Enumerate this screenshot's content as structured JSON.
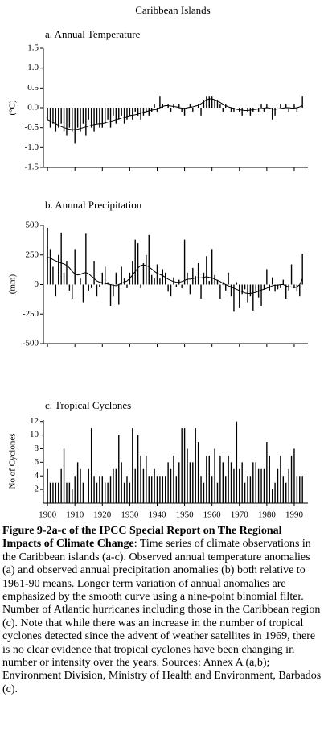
{
  "title": "Caribbean Islands",
  "chart_data": [
    {
      "type": "bar",
      "title": "a. Annual Temperature",
      "ylabel": "(°C)",
      "color": "#000000",
      "x": [
        1900,
        1901,
        1902,
        1903,
        1904,
        1905,
        1906,
        1907,
        1908,
        1909,
        1910,
        1911,
        1912,
        1913,
        1914,
        1915,
        1916,
        1917,
        1918,
        1919,
        1920,
        1921,
        1922,
        1923,
        1924,
        1925,
        1926,
        1927,
        1928,
        1929,
        1930,
        1931,
        1932,
        1933,
        1934,
        1935,
        1936,
        1937,
        1938,
        1939,
        1940,
        1941,
        1942,
        1943,
        1944,
        1945,
        1946,
        1947,
        1948,
        1949,
        1950,
        1951,
        1952,
        1953,
        1954,
        1955,
        1956,
        1957,
        1958,
        1959,
        1960,
        1961,
        1962,
        1963,
        1964,
        1965,
        1966,
        1967,
        1968,
        1969,
        1970,
        1971,
        1972,
        1973,
        1974,
        1975,
        1976,
        1977,
        1978,
        1979,
        1980,
        1981,
        1982,
        1983,
        1984,
        1985,
        1986,
        1987,
        1988,
        1989,
        1990,
        1991,
        1992,
        1993
      ],
      "values": [
        -0.3,
        -0.5,
        -0.4,
        -0.6,
        -0.5,
        -0.4,
        -0.6,
        -0.7,
        -0.5,
        -0.6,
        -0.9,
        -0.5,
        -0.6,
        -0.4,
        -0.7,
        -0.3,
        -0.5,
        -0.6,
        -0.4,
        -0.5,
        -0.5,
        -0.4,
        -0.3,
        -0.5,
        -0.2,
        -0.4,
        -0.3,
        -0.2,
        -0.4,
        -0.3,
        -0.2,
        -0.3,
        -0.1,
        -0.2,
        -0.3,
        -0.2,
        -0.1,
        -0.2,
        -0.1,
        0.1,
        -0.1,
        0.3,
        0.1,
        0.0,
        0.1,
        -0.1,
        0.1,
        0.0,
        0.1,
        -0.1,
        -0.2,
        0.0,
        0.1,
        -0.1,
        0.0,
        0.1,
        -0.2,
        0.2,
        0.3,
        0.3,
        0.3,
        0.2,
        0.2,
        0.1,
        -0.1,
        0.1,
        0.0,
        -0.1,
        -0.1,
        0.0,
        -0.1,
        -0.2,
        0.0,
        -0.1,
        -0.2,
        -0.1,
        0.0,
        -0.1,
        0.1,
        -0.1,
        0.1,
        0.0,
        -0.3,
        -0.2,
        0.0,
        0.1,
        0.0,
        0.1,
        -0.1,
        0.0,
        0.1,
        -0.1,
        0.0,
        0.3
      ],
      "smooth": [
        -0.3,
        -0.33,
        -0.37,
        -0.4,
        -0.44,
        -0.47,
        -0.5,
        -0.52,
        -0.54,
        -0.55,
        -0.55,
        -0.54,
        -0.52,
        -0.5,
        -0.48,
        -0.46,
        -0.44,
        -0.42,
        -0.41,
        -0.4,
        -0.4,
        -0.38,
        -0.36,
        -0.34,
        -0.32,
        -0.3,
        -0.28,
        -0.26,
        -0.24,
        -0.22,
        -0.2,
        -0.19,
        -0.18,
        -0.16,
        -0.14,
        -0.12,
        -0.1,
        -0.08,
        -0.06,
        -0.05,
        -0.04,
        0.0,
        0.03,
        0.05,
        0.05,
        0.04,
        0.03,
        0.02,
        0.0,
        -0.01,
        -0.02,
        0.0,
        0.01,
        0.02,
        0.04,
        0.06,
        0.1,
        0.15,
        0.2,
        0.22,
        0.22,
        0.2,
        0.17,
        0.13,
        0.09,
        0.05,
        0.02,
        0.0,
        -0.02,
        -0.04,
        -0.05,
        -0.06,
        -0.07,
        -0.07,
        -0.06,
        -0.05,
        -0.04,
        -0.03,
        -0.02,
        -0.01,
        0.0,
        -0.01,
        -0.03,
        -0.04,
        -0.03,
        -0.02,
        -0.01,
        0.0,
        0.0,
        -0.01,
        -0.01,
        0.0,
        0.02,
        0.05
      ],
      "xlim": [
        1898.5,
        1995
      ],
      "xticks": [
        1900,
        1910,
        1920,
        1930,
        1940,
        1950,
        1960,
        1970,
        1980,
        1990
      ],
      "xtick_labels": false,
      "ylim": [
        -1.5,
        1.5
      ],
      "yticks": [
        1.5,
        {
          "value": 1.0,
          "label": "1.0"
        },
        0.5,
        {
          "value": 0.0,
          "label": "0.0"
        },
        -0.5,
        {
          "value": -1.0,
          "label": "-1.0"
        },
        -1.5
      ]
    },
    {
      "type": "bar",
      "title": "b. Annual Precipitation",
      "ylabel": "(mm)",
      "color": "#000000",
      "x": [
        1900,
        1901,
        1902,
        1903,
        1904,
        1905,
        1906,
        1907,
        1908,
        1909,
        1910,
        1911,
        1912,
        1913,
        1914,
        1915,
        1916,
        1917,
        1918,
        1919,
        1920,
        1921,
        1922,
        1923,
        1924,
        1925,
        1926,
        1927,
        1928,
        1929,
        1930,
        1931,
        1932,
        1933,
        1934,
        1935,
        1936,
        1937,
        1938,
        1939,
        1940,
        1941,
        1942,
        1943,
        1944,
        1945,
        1946,
        1947,
        1948,
        1949,
        1950,
        1951,
        1952,
        1953,
        1954,
        1955,
        1956,
        1957,
        1958,
        1959,
        1960,
        1961,
        1962,
        1963,
        1964,
        1965,
        1966,
        1967,
        1968,
        1969,
        1970,
        1971,
        1972,
        1973,
        1974,
        1975,
        1976,
        1977,
        1978,
        1979,
        1980,
        1981,
        1982,
        1983,
        1984,
        1985,
        1986,
        1987,
        1988,
        1989,
        1990,
        1991,
        1992,
        1993
      ],
      "values": [
        480,
        300,
        150,
        -100,
        250,
        440,
        100,
        200,
        -50,
        -120,
        300,
        0,
        50,
        -150,
        430,
        -50,
        -30,
        200,
        -100,
        -20,
        100,
        150,
        20,
        -180,
        -100,
        100,
        -170,
        150,
        50,
        -30,
        100,
        200,
        380,
        350,
        -30,
        180,
        250,
        420,
        80,
        50,
        170,
        50,
        130,
        100,
        -60,
        -100,
        60,
        -20,
        40,
        -30,
        380,
        100,
        -80,
        140,
        70,
        180,
        -120,
        100,
        240,
        30,
        300,
        80,
        40,
        -120,
        20,
        -50,
        100,
        -100,
        -230,
        20,
        -200,
        -80,
        -40,
        -150,
        -100,
        -220,
        -60,
        -110,
        -180,
        -40,
        130,
        -50,
        60,
        -60,
        -40,
        -30,
        40,
        -120,
        -50,
        170,
        -30,
        -60,
        -100,
        260
      ],
      "smooth": [
        230,
        225,
        210,
        200,
        190,
        180,
        175,
        160,
        140,
        110,
        90,
        80,
        85,
        95,
        100,
        90,
        70,
        50,
        30,
        20,
        15,
        10,
        5,
        0,
        -5,
        -10,
        0,
        10,
        20,
        30,
        50,
        80,
        110,
        140,
        160,
        165,
        160,
        150,
        130,
        110,
        95,
        85,
        75,
        60,
        45,
        35,
        25,
        20,
        20,
        25,
        35,
        45,
        45,
        50,
        55,
        55,
        55,
        60,
        65,
        60,
        55,
        45,
        35,
        25,
        10,
        0,
        -10,
        -20,
        -30,
        -40,
        -50,
        -60,
        -70,
        -75,
        -75,
        -70,
        -65,
        -55,
        -45,
        -40,
        -30,
        -20,
        -10,
        -5,
        -5,
        0,
        0,
        -10,
        -20,
        -20,
        -25,
        -20,
        0,
        50
      ],
      "xlim": [
        1898.5,
        1995
      ],
      "xticks": [
        1900,
        1910,
        1920,
        1930,
        1940,
        1950,
        1960,
        1970,
        1980,
        1990
      ],
      "xtick_labels": false,
      "ylim": [
        -500,
        500
      ],
      "yticks": [
        500,
        250,
        0,
        -250,
        -500
      ]
    },
    {
      "type": "bar",
      "title": "c. Tropical Cyclones",
      "ylabel": "No of Cyclones",
      "color": "#000000",
      "x": [
        1900,
        1901,
        1902,
        1903,
        1904,
        1905,
        1906,
        1907,
        1908,
        1909,
        1910,
        1911,
        1912,
        1913,
        1914,
        1915,
        1916,
        1917,
        1918,
        1919,
        1920,
        1921,
        1922,
        1923,
        1924,
        1925,
        1926,
        1927,
        1928,
        1929,
        1930,
        1931,
        1932,
        1933,
        1934,
        1935,
        1936,
        1937,
        1938,
        1939,
        1940,
        1941,
        1942,
        1943,
        1944,
        1945,
        1946,
        1947,
        1948,
        1949,
        1950,
        1951,
        1952,
        1953,
        1954,
        1955,
        1956,
        1957,
        1958,
        1959,
        1960,
        1961,
        1962,
        1963,
        1964,
        1965,
        1966,
        1967,
        1968,
        1969,
        1970,
        1971,
        1972,
        1973,
        1974,
        1975,
        1976,
        1977,
        1978,
        1979,
        1980,
        1981,
        1982,
        1983,
        1984,
        1985,
        1986,
        1987,
        1988,
        1989,
        1990,
        1991,
        1992,
        1993
      ],
      "values": [
        5,
        3,
        3,
        3,
        3,
        5,
        8,
        3,
        3,
        2,
        4,
        6,
        5,
        3,
        0,
        5,
        11,
        4,
        3,
        4,
        4,
        3,
        3,
        4,
        5,
        5,
        10,
        6,
        3,
        4,
        3,
        11,
        5,
        10,
        7,
        5,
        7,
        4,
        4,
        5,
        4,
        4,
        4,
        4,
        6,
        5,
        7,
        4,
        6,
        11,
        11,
        8,
        6,
        6,
        11,
        9,
        4,
        3,
        7,
        7,
        4,
        8,
        3,
        7,
        6,
        4,
        7,
        6,
        5,
        12,
        5,
        6,
        3,
        4,
        4,
        6,
        6,
        5,
        5,
        5,
        9,
        7,
        2,
        3,
        5,
        7,
        4,
        3,
        5,
        7,
        8,
        4,
        4,
        4
      ],
      "xlim": [
        1898.5,
        1995
      ],
      "xticks": [
        1900,
        1910,
        1920,
        1930,
        1940,
        1950,
        1960,
        1970,
        1980,
        1990
      ],
      "xtick_labels": true,
      "ylim": [
        0,
        12.2
      ],
      "yticks": [
        2,
        4,
        6,
        8,
        10,
        12
      ]
    }
  ],
  "caption": {
    "bold": "Figure 9-2a-c of the IPCC Special Report on The Regional Impacts of Climate Change",
    "text": ": Time series of climate observations in the Caribbean islands (a-c). Observed annual temperature anomalies (a) and observed annual precipitation anomalies (b) both relative to 1961-90 means. Longer term variation of annual anomalies are emphasized by the smooth curve using a nine-point binomial filter. Number of Atlantic hurricanes including those in the Caribbean region (c). Note that while there was an increase in the number of tropical cyclones detected since the advent of weather satellites in 1969, there is no clear evidence that tropical cyclones have been changing in number or intensity over the years. Sources: Annex A (a,b); Environment Division, Ministry of Health and Environment, Barbados (c)."
  }
}
